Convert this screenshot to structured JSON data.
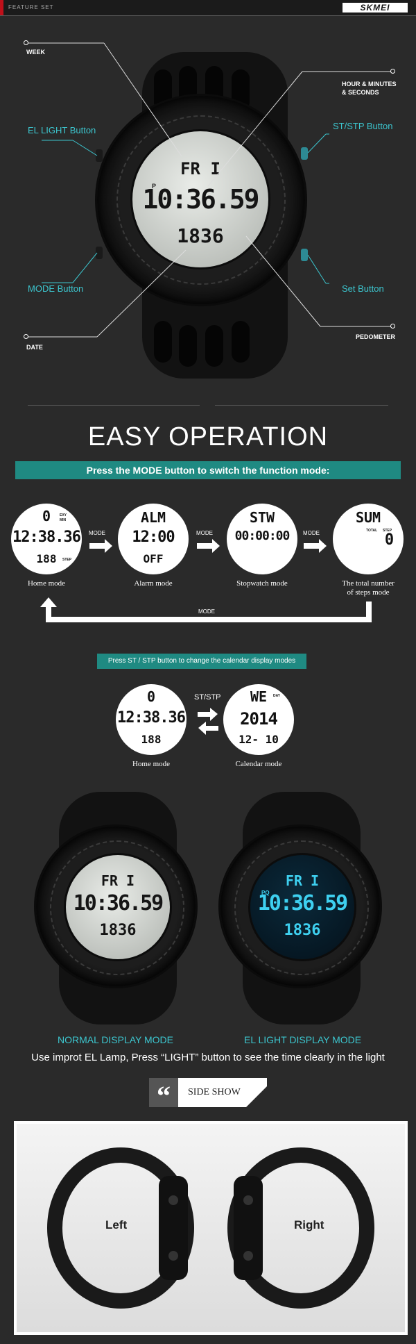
{
  "header": {
    "title": "FEATURE SET",
    "brand": "SKMEI"
  },
  "hero": {
    "display": {
      "day": "FR I",
      "time": "10:36.59",
      "steps": "1836",
      "pm": "P"
    },
    "callouts": {
      "week": "WEEK",
      "el_light": "EL LIGHT Button",
      "mode": "MODE Button",
      "date": "DATE",
      "hour": "HOUR & MINUTES",
      "seconds": "& SECONDS",
      "st_stp": "ST/STP Button",
      "set": "Set Button",
      "pedometer": "PEDOMETER"
    }
  },
  "easy": {
    "title": "EASY OPERATION",
    "mode_bar": "Press the MODE button to switch the function mode:",
    "modes": [
      {
        "top": "0",
        "mid": "12:38.36",
        "bot": "188",
        "caption": "Home mode",
        "tag1": "EXY",
        "tag2": "MIN",
        "tag3": "STEP"
      },
      {
        "top": "ALM",
        "mid": "12:00",
        "bot": "OFF",
        "caption": "Alarm mode"
      },
      {
        "top": "STW",
        "mid": "00:00:00",
        "bot": "",
        "caption": "Stopwatch mode"
      },
      {
        "top": "SUM",
        "mid": "0",
        "bot": "",
        "caption": "The total number",
        "caption2": "of steps mode",
        "tag1": "TOTAL",
        "tag2": "STEP"
      }
    ],
    "arrow_label": "MODE",
    "st_bar": "Press ST / STP button to change the calendar display modes",
    "st_label": "ST/STP",
    "cal": {
      "home": {
        "top": "0",
        "mid": "12:38.36",
        "bot": "188",
        "caption": "Home mode"
      },
      "calendar": {
        "top": "WE",
        "mid": "2014",
        "bot": "12- 10",
        "caption": "Calendar mode",
        "tag": "DAY"
      }
    }
  },
  "display_modes": {
    "normal": "NORMAL DISPLAY MODE",
    "el": "EL LIGHT DISPLAY MODE",
    "el_pm": "PQ",
    "note": "Use improt EL Lamp, Press “LIGHT” button to see the time clearly in the light"
  },
  "side": {
    "title": "SIDE SHOW",
    "quote": "“",
    "left": "Left",
    "right": "Right"
  },
  "colors": {
    "accent": "#3cc6cf",
    "bar": "#1f8a82",
    "bg": "#2a2a2a"
  }
}
